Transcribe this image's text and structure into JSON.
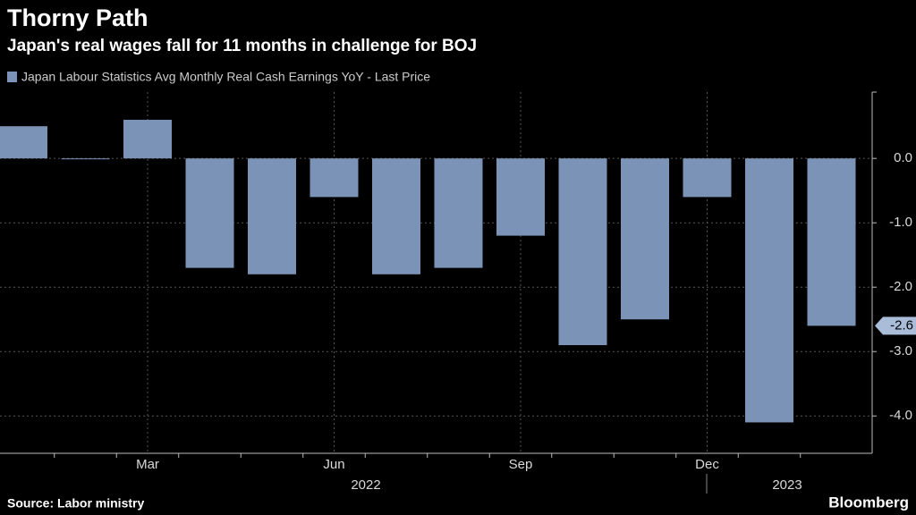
{
  "chart_data": {
    "type": "bar",
    "title": "Thorny Path",
    "subtitle": "Japan's real wages fall for 11 months in challenge for BOJ",
    "legend": "Japan Labour Statistics Avg Monthly Real Cash Earnings YoY - Last Price",
    "source": "Source: Labor ministry",
    "brand": "Bloomberg",
    "categories": [
      null,
      null,
      "Mar",
      null,
      null,
      "Jun",
      null,
      null,
      "Sep",
      null,
      null,
      "Dec",
      null,
      null
    ],
    "year_labels": [
      "2022",
      "2023"
    ],
    "values": [
      0.5,
      0.0,
      0.6,
      -1.7,
      -1.8,
      -0.6,
      -1.8,
      -1.7,
      -1.2,
      -2.9,
      -2.5,
      -0.6,
      -4.1,
      -2.6
    ],
    "last_price_label": "-2.6",
    "color": "#7b93b6",
    "ylim": [
      -4.58,
      1.03
    ],
    "yticks": [
      {
        "value": 0,
        "label": "0.0"
      },
      {
        "value": -1,
        "label": "-1.0"
      },
      {
        "value": -2,
        "label": "-2.0"
      },
      {
        "value": -3,
        "label": "-3.0"
      },
      {
        "value": -4,
        "label": "-4.0"
      }
    ],
    "grid": true
  }
}
